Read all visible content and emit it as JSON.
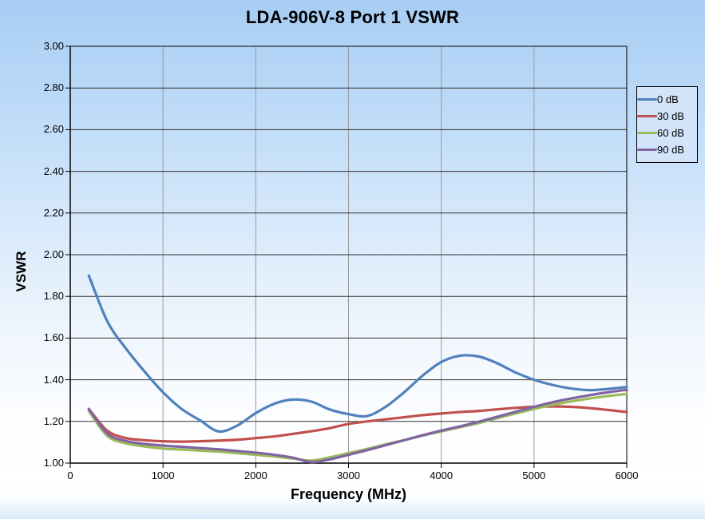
{
  "title": "LDA-906V-8 Port 1 VSWR",
  "y_axis": {
    "title": "VSWR"
  },
  "x_axis": {
    "title": "Frequency (MHz)"
  },
  "legend": {
    "entries": [
      {
        "label": "0 dB",
        "color": "#4F81BD"
      },
      {
        "label": "30 dB",
        "color": "#C0504D"
      },
      {
        "label": "60 dB",
        "color": "#9BBB59"
      },
      {
        "label": "90 dB",
        "color": "#8064A2"
      }
    ]
  },
  "colors": {
    "h_gridline": "#2e2e2e",
    "v_gridline": "#9a9a9a",
    "axis": "#000000",
    "plot_border": "#000000"
  },
  "chart_data": {
    "type": "line",
    "title": "LDA-906V-8 Port 1 VSWR",
    "xlabel": "Frequency (MHz)",
    "ylabel": "VSWR",
    "xlim": [
      0,
      6000
    ],
    "ylim": [
      1.0,
      3.0
    ],
    "grid": true,
    "legend_position": "right-top",
    "x_tick_labels": [
      "0",
      "1000",
      "2000",
      "3000",
      "4000",
      "5000",
      "6000"
    ],
    "x_tick_values": [
      0,
      1000,
      2000,
      3000,
      4000,
      5000,
      6000
    ],
    "y_tick_labels": [
      "3.00",
      "2.80",
      "2.60",
      "2.40",
      "2.20",
      "2.00",
      "1.80",
      "1.60",
      "1.40",
      "1.20",
      "1.00"
    ],
    "y_tick_values": [
      3.0,
      2.8,
      2.6,
      2.4,
      2.2,
      2.0,
      1.8,
      1.6,
      1.4,
      1.2,
      1.0
    ],
    "x": [
      200,
      400,
      600,
      800,
      1000,
      1200,
      1400,
      1600,
      1800,
      2000,
      2200,
      2400,
      2600,
      2800,
      3000,
      3200,
      3400,
      3600,
      3800,
      4000,
      4200,
      4400,
      4600,
      4800,
      5000,
      5200,
      5400,
      5600,
      5800,
      6000
    ],
    "series": [
      {
        "name": "0 dB",
        "color": "#4F81BD",
        "values": [
          1.9,
          1.68,
          1.55,
          1.44,
          1.34,
          1.26,
          1.205,
          1.152,
          1.18,
          1.24,
          1.285,
          1.305,
          1.295,
          1.257,
          1.235,
          1.226,
          1.27,
          1.34,
          1.42,
          1.485,
          1.515,
          1.512,
          1.48,
          1.435,
          1.4,
          1.375,
          1.358,
          1.35,
          1.356,
          1.365
        ]
      },
      {
        "name": "30 dB",
        "color": "#C0504D",
        "values": [
          1.26,
          1.155,
          1.12,
          1.11,
          1.105,
          1.103,
          1.105,
          1.108,
          1.112,
          1.12,
          1.128,
          1.14,
          1.153,
          1.168,
          1.188,
          1.2,
          1.21,
          1.22,
          1.23,
          1.238,
          1.245,
          1.25,
          1.258,
          1.265,
          1.27,
          1.272,
          1.27,
          1.264,
          1.255,
          1.245
        ]
      },
      {
        "name": "60 dB",
        "color": "#9BBB59",
        "values": [
          1.25,
          1.13,
          1.095,
          1.08,
          1.07,
          1.065,
          1.06,
          1.055,
          1.048,
          1.04,
          1.032,
          1.022,
          1.012,
          1.028,
          1.048,
          1.068,
          1.09,
          1.11,
          1.132,
          1.152,
          1.172,
          1.192,
          1.215,
          1.238,
          1.26,
          1.28,
          1.296,
          1.31,
          1.322,
          1.332
        ]
      },
      {
        "name": "90 dB",
        "color": "#8064A2",
        "values": [
          1.26,
          1.142,
          1.106,
          1.092,
          1.084,
          1.078,
          1.072,
          1.066,
          1.058,
          1.05,
          1.04,
          1.026,
          1.005,
          1.018,
          1.04,
          1.062,
          1.086,
          1.11,
          1.134,
          1.156,
          1.176,
          1.198,
          1.222,
          1.246,
          1.27,
          1.292,
          1.31,
          1.326,
          1.34,
          1.352
        ]
      }
    ]
  }
}
